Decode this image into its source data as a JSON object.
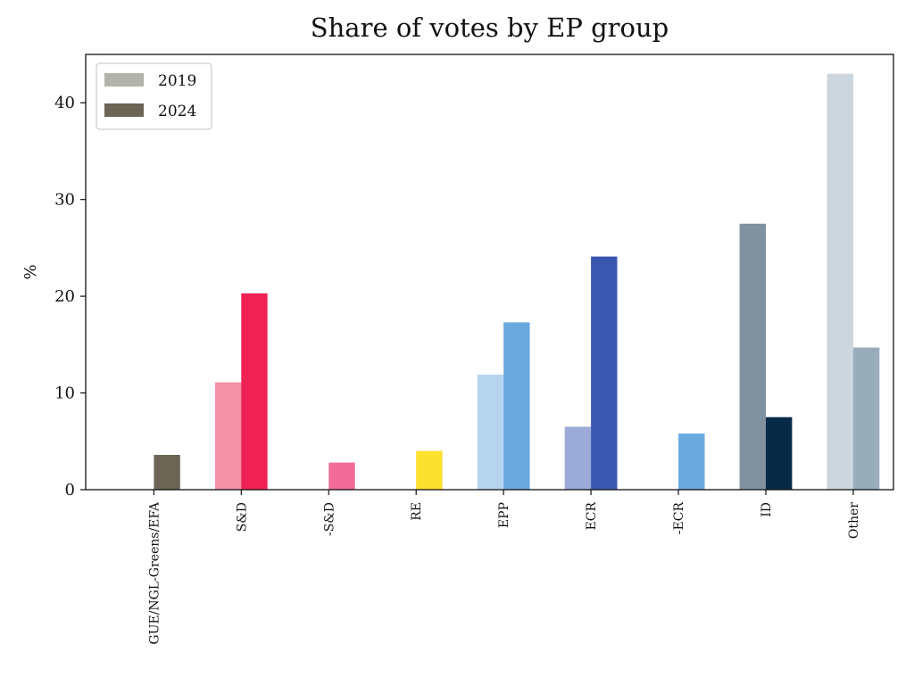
{
  "chart_data": {
    "type": "bar",
    "title": "Share of votes by EP group",
    "xlabel": "",
    "ylabel": "%",
    "ylim": [
      0,
      45
    ],
    "yticks": [
      0,
      10,
      20,
      30,
      40
    ],
    "grid": false,
    "legend_position": "top-left",
    "categories": [
      "GUE/NGL-Greens/EFA",
      "S&D",
      "-S&D",
      "RE",
      "EPP",
      "ECR",
      "-ECR",
      "ID",
      "Other"
    ],
    "series": [
      {
        "name": "2019",
        "legend_color": "#b3b3ab",
        "values": [
          null,
          11.1,
          null,
          null,
          11.9,
          6.5,
          null,
          27.5,
          43.0
        ],
        "colors": [
          "#b3b3ab",
          "#f48fa8",
          "#f06b98",
          "#fde12f",
          "#b7d4ef",
          "#9baad6",
          "#6aa9e0",
          "#80929f",
          "#cbd6de"
        ]
      },
      {
        "name": "2024",
        "legend_color": "#6b6556",
        "values": [
          3.6,
          20.3,
          2.8,
          4.0,
          17.3,
          24.1,
          5.8,
          7.5,
          14.7
        ],
        "colors": [
          "#6b6556",
          "#ef2155",
          "#f06b98",
          "#fde12f",
          "#6aa9e0",
          "#3a56b0",
          "#6aa9e0",
          "#072a47",
          "#98adb9"
        ]
      }
    ]
  }
}
